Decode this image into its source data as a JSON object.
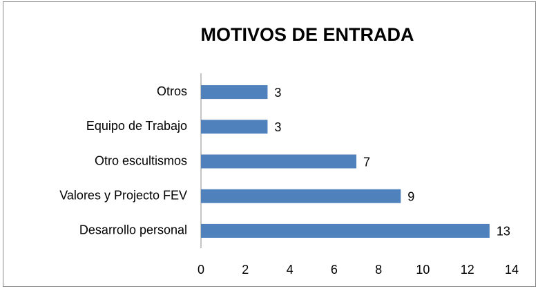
{
  "chart_data": {
    "type": "barh",
    "title": "MOTIVOS DE ENTRADA",
    "categories": [
      "Otros",
      "Equipo de Trabajo",
      "Otro escultismos",
      "Valores y Projecto FEV",
      "Desarrollo personal"
    ],
    "values": [
      3,
      3,
      7,
      9,
      13
    ],
    "color": "#4f81bd",
    "xlim": [
      0,
      14
    ],
    "xticks": [
      0,
      2,
      4,
      6,
      8,
      10,
      12,
      14
    ],
    "grid": false
  }
}
